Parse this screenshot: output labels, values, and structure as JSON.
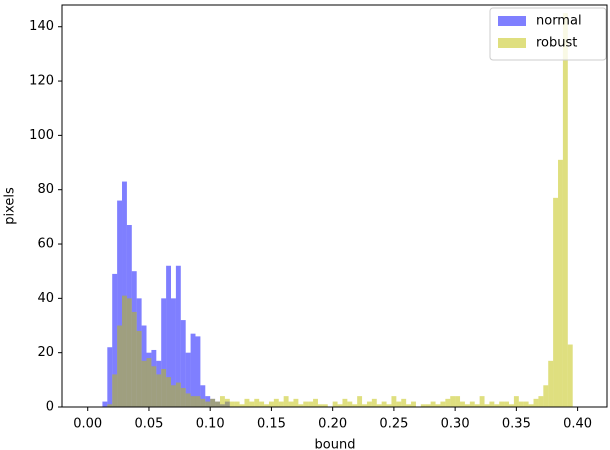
{
  "chart_data": {
    "type": "histogram",
    "xlabel": "bound",
    "ylabel": "pixels",
    "bins": [
      0,
      0.004,
      0.008,
      0.012,
      0.016,
      0.02,
      0.024,
      0.028,
      0.032,
      0.036,
      0.04,
      0.044,
      0.048,
      0.052,
      0.056,
      0.06,
      0.064,
      0.068,
      0.072,
      0.076,
      0.08,
      0.084,
      0.088,
      0.092,
      0.096,
      0.1,
      0.104,
      0.108,
      0.112,
      0.116,
      0.12,
      0.124,
      0.128,
      0.132,
      0.136,
      0.14,
      0.144,
      0.148,
      0.152,
      0.156,
      0.16,
      0.164,
      0.168,
      0.172,
      0.176,
      0.18,
      0.184,
      0.188,
      0.192,
      0.196,
      0.2,
      0.204,
      0.208,
      0.212,
      0.216,
      0.22,
      0.224,
      0.228,
      0.232,
      0.236,
      0.24,
      0.244,
      0.248,
      0.252,
      0.256,
      0.26,
      0.264,
      0.268,
      0.272,
      0.276,
      0.28,
      0.284,
      0.288,
      0.292,
      0.296,
      0.3,
      0.304,
      0.308,
      0.312,
      0.316,
      0.32,
      0.324,
      0.328,
      0.332,
      0.336,
      0.34,
      0.344,
      0.348,
      0.352,
      0.356,
      0.36,
      0.364,
      0.368,
      0.372,
      0.376,
      0.38,
      0.384,
      0.388,
      0.392,
      0.396,
      0.4
    ],
    "series": [
      {
        "name": "normal",
        "color": "#0000ff",
        "values": [
          0,
          0,
          0,
          2,
          22,
          49,
          76,
          83,
          67,
          50,
          40,
          30,
          20,
          21,
          17,
          40,
          52,
          40,
          52,
          32,
          20,
          27,
          26,
          8,
          4,
          3,
          2,
          1,
          2,
          0,
          0,
          0,
          0,
          0,
          0,
          0,
          0,
          0,
          0,
          0,
          0,
          0,
          0,
          0,
          0,
          0,
          0,
          0,
          0,
          0,
          0,
          0,
          0,
          0,
          0,
          0,
          0,
          0,
          0,
          0,
          0,
          0,
          0,
          0,
          0,
          0,
          0,
          0,
          0,
          0,
          0,
          0,
          0,
          0,
          0,
          0,
          0,
          0,
          0,
          0,
          0,
          0,
          0,
          0,
          0,
          0,
          0,
          0,
          0,
          0,
          0,
          0,
          0,
          0,
          0,
          0,
          0,
          0,
          0,
          0
        ]
      },
      {
        "name": "robust",
        "color": "#bfbf00",
        "values": [
          0,
          0,
          0,
          0,
          1,
          12,
          30,
          41,
          40,
          35,
          28,
          17,
          18,
          15,
          12,
          14,
          11,
          8,
          9,
          7,
          5,
          4,
          4,
          3,
          2,
          3,
          2,
          4,
          3,
          2,
          2,
          1,
          3,
          2,
          3,
          2,
          1,
          2,
          3,
          2,
          4,
          2,
          3,
          1,
          2,
          2,
          3,
          1,
          1,
          0,
          2,
          1,
          3,
          2,
          1,
          4,
          1,
          2,
          3,
          1,
          2,
          1,
          4,
          2,
          3,
          1,
          2,
          0,
          1,
          1,
          2,
          1,
          2,
          3,
          4,
          4,
          2,
          1,
          2,
          1,
          4,
          1,
          2,
          1,
          2,
          2,
          1,
          4,
          2,
          2,
          1,
          3,
          4,
          8,
          17,
          77,
          91,
          145,
          23,
          0
        ]
      }
    ],
    "alpha": 0.5,
    "xlim": [
      -0.021,
      0.424
    ],
    "ylim": [
      0,
      148
    ],
    "xticks": [
      {
        "value": 0,
        "label": "0.00"
      },
      {
        "value": 0.05,
        "label": "0.05"
      },
      {
        "value": 0.1,
        "label": "0.10"
      },
      {
        "value": 0.15,
        "label": "0.15"
      },
      {
        "value": 0.2,
        "label": "0.20"
      },
      {
        "value": 0.25,
        "label": "0.25"
      },
      {
        "value": 0.3,
        "label": "0.30"
      },
      {
        "value": 0.35,
        "label": "0.35"
      },
      {
        "value": 0.4,
        "label": "0.40"
      }
    ],
    "yticks": [
      0,
      20,
      40,
      60,
      80,
      100,
      120,
      140
    ],
    "legend": "upper right"
  }
}
